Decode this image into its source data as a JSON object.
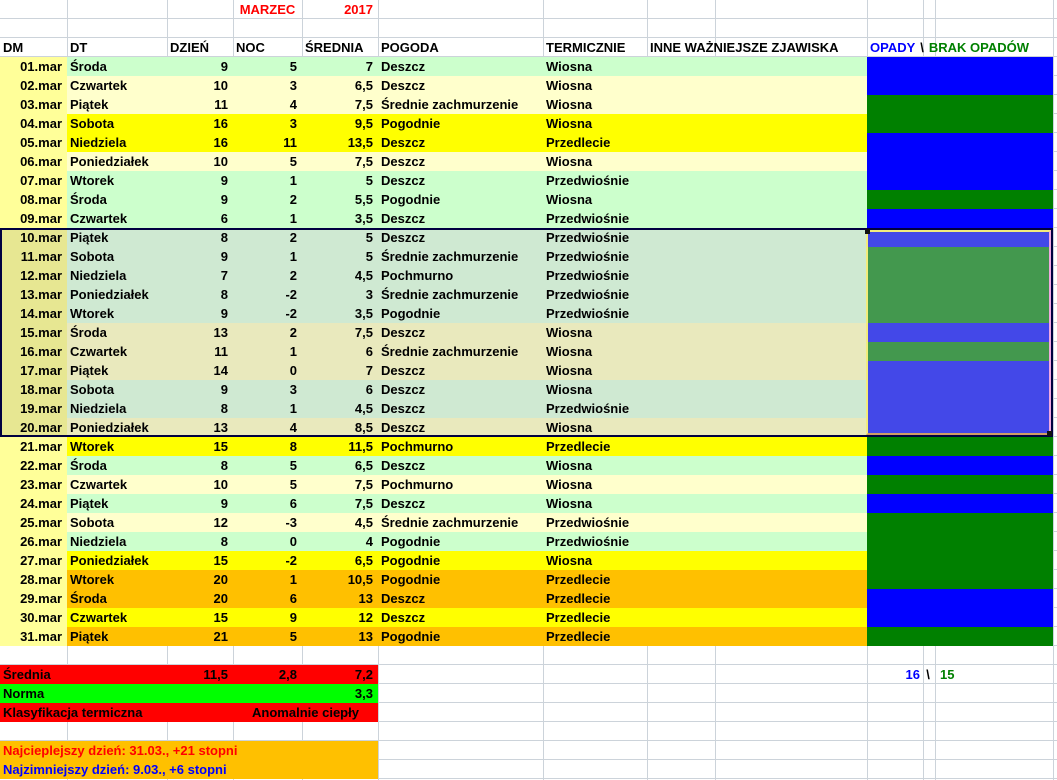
{
  "title": {
    "month": "MARZEC",
    "year": "2017"
  },
  "header": {
    "dm": "DM",
    "dt": "DT",
    "dzien": "DZIEŃ",
    "noc": "NOC",
    "srednia": "ŚREDNIA",
    "pogoda": "POGODA",
    "termicznie": "TERMICZNIE",
    "zjawiska": "INNE WAŻNIEJSZE ZJAWISKA",
    "opady": "OPADY",
    "separator": "\\",
    "brak_opadow": "BRAK OPADÓW"
  },
  "rows": [
    {
      "dm": "01.mar",
      "dt": "Środa",
      "dzien": "9",
      "noc": "5",
      "srednia": "7",
      "pogoda": "Deszcz",
      "termicznie": "Wiosna",
      "zjawiska": "",
      "row_color": "mint",
      "precip": "opady",
      "selected": false
    },
    {
      "dm": "02.mar",
      "dt": "Czwartek",
      "dzien": "10",
      "noc": "3",
      "srednia": "6,5",
      "pogoda": "Deszcz",
      "termicznie": "Wiosna",
      "zjawiska": "",
      "row_color": "cream",
      "precip": "opady",
      "selected": false
    },
    {
      "dm": "03.mar",
      "dt": "Piątek",
      "dzien": "11",
      "noc": "4",
      "srednia": "7,5",
      "pogoda": "Średnie zachmurzenie",
      "termicznie": "Wiosna",
      "zjawiska": "",
      "row_color": "cream",
      "precip": "brak",
      "selected": false
    },
    {
      "dm": "04.mar",
      "dt": "Sobota",
      "dzien": "16",
      "noc": "3",
      "srednia": "9,5",
      "pogoda": "Pogodnie",
      "termicznie": "Wiosna",
      "zjawiska": "",
      "row_color": "yellow",
      "precip": "brak",
      "selected": false
    },
    {
      "dm": "05.mar",
      "dt": "Niedziela",
      "dzien": "16",
      "noc": "11",
      "srednia": "13,5",
      "pogoda": "Deszcz",
      "termicznie": "Przedlecie",
      "zjawiska": "",
      "row_color": "yellow",
      "precip": "opady",
      "selected": false
    },
    {
      "dm": "06.mar",
      "dt": "Poniedziałek",
      "dzien": "10",
      "noc": "5",
      "srednia": "7,5",
      "pogoda": "Deszcz",
      "termicznie": "Wiosna",
      "zjawiska": "",
      "row_color": "cream",
      "precip": "opady",
      "selected": false
    },
    {
      "dm": "07.mar",
      "dt": "Wtorek",
      "dzien": "9",
      "noc": "1",
      "srednia": "5",
      "pogoda": "Deszcz",
      "termicznie": "Przedwiośnie",
      "zjawiska": "",
      "row_color": "mint",
      "precip": "opady",
      "selected": false
    },
    {
      "dm": "08.mar",
      "dt": "Środa",
      "dzien": "9",
      "noc": "2",
      "srednia": "5,5",
      "pogoda": "Pogodnie",
      "termicznie": "Wiosna",
      "zjawiska": "",
      "row_color": "mint",
      "precip": "brak",
      "selected": false
    },
    {
      "dm": "09.mar",
      "dt": "Czwartek",
      "dzien": "6",
      "noc": "1",
      "srednia": "3,5",
      "pogoda": "Deszcz",
      "termicznie": "Przedwiośnie",
      "zjawiska": "",
      "row_color": "mint",
      "precip": "opady",
      "selected": false
    },
    {
      "dm": "10.mar",
      "dt": "Piątek",
      "dzien": "8",
      "noc": "2",
      "srednia": "5",
      "pogoda": "Deszcz",
      "termicznie": "Przedwiośnie",
      "zjawiska": "",
      "row_color": "mint",
      "precip": "opady",
      "selected": true
    },
    {
      "dm": "11.mar",
      "dt": "Sobota",
      "dzien": "9",
      "noc": "1",
      "srednia": "5",
      "pogoda": "Średnie zachmurzenie",
      "termicznie": "Przedwiośnie",
      "zjawiska": "",
      "row_color": "mint",
      "precip": "brak",
      "selected": true
    },
    {
      "dm": "12.mar",
      "dt": "Niedziela",
      "dzien": "7",
      "noc": "2",
      "srednia": "4,5",
      "pogoda": "Pochmurno",
      "termicznie": "Przedwiośnie",
      "zjawiska": "",
      "row_color": "mint",
      "precip": "brak",
      "selected": true
    },
    {
      "dm": "13.mar",
      "dt": "Poniedziałek",
      "dzien": "8",
      "noc": "-2",
      "srednia": "3",
      "pogoda": "Średnie zachmurzenie",
      "termicznie": "Przedwiośnie",
      "zjawiska": "",
      "row_color": "mint",
      "precip": "brak",
      "selected": true
    },
    {
      "dm": "14.mar",
      "dt": "Wtorek",
      "dzien": "9",
      "noc": "-2",
      "srednia": "3,5",
      "pogoda": "Pogodnie",
      "termicznie": "Przedwiośnie",
      "zjawiska": "",
      "row_color": "mint",
      "precip": "brak",
      "selected": true
    },
    {
      "dm": "15.mar",
      "dt": "Środa",
      "dzien": "13",
      "noc": "2",
      "srednia": "7,5",
      "pogoda": "Deszcz",
      "termicznie": "Wiosna",
      "zjawiska": "",
      "row_color": "cream",
      "precip": "opady",
      "selected": true
    },
    {
      "dm": "16.mar",
      "dt": "Czwartek",
      "dzien": "11",
      "noc": "1",
      "srednia": "6",
      "pogoda": "Średnie zachmurzenie",
      "termicznie": "Wiosna",
      "zjawiska": "",
      "row_color": "cream",
      "precip": "brak",
      "selected": true
    },
    {
      "dm": "17.mar",
      "dt": "Piątek",
      "dzien": "14",
      "noc": "0",
      "srednia": "7",
      "pogoda": "Deszcz",
      "termicznie": "Wiosna",
      "zjawiska": "",
      "row_color": "cream",
      "precip": "opady",
      "selected": true
    },
    {
      "dm": "18.mar",
      "dt": "Sobota",
      "dzien": "9",
      "noc": "3",
      "srednia": "6",
      "pogoda": "Deszcz",
      "termicznie": "Wiosna",
      "zjawiska": "",
      "row_color": "mint",
      "precip": "opady",
      "selected": true
    },
    {
      "dm": "19.mar",
      "dt": "Niedziela",
      "dzien": "8",
      "noc": "1",
      "srednia": "4,5",
      "pogoda": "Deszcz",
      "termicznie": "Przedwiośnie",
      "zjawiska": "",
      "row_color": "mint",
      "precip": "opady",
      "selected": true
    },
    {
      "dm": "20.mar",
      "dt": "Poniedziałek",
      "dzien": "13",
      "noc": "4",
      "srednia": "8,5",
      "pogoda": "Deszcz",
      "termicznie": "Wiosna",
      "zjawiska": "",
      "row_color": "cream",
      "precip": "opady",
      "selected": true
    },
    {
      "dm": "21.mar",
      "dt": "Wtorek",
      "dzien": "15",
      "noc": "8",
      "srednia": "11,5",
      "pogoda": "Pochmurno",
      "termicznie": "Przedlecie",
      "zjawiska": "",
      "row_color": "yellow",
      "precip": "brak",
      "selected": false
    },
    {
      "dm": "22.mar",
      "dt": "Środa",
      "dzien": "8",
      "noc": "5",
      "srednia": "6,5",
      "pogoda": "Deszcz",
      "termicznie": "Wiosna",
      "zjawiska": "",
      "row_color": "mint",
      "precip": "opady",
      "selected": false
    },
    {
      "dm": "23.mar",
      "dt": "Czwartek",
      "dzien": "10",
      "noc": "5",
      "srednia": "7,5",
      "pogoda": "Pochmurno",
      "termicznie": "Wiosna",
      "zjawiska": "",
      "row_color": "cream",
      "precip": "brak",
      "selected": false
    },
    {
      "dm": "24.mar",
      "dt": "Piątek",
      "dzien": "9",
      "noc": "6",
      "srednia": "7,5",
      "pogoda": "Deszcz",
      "termicznie": "Wiosna",
      "zjawiska": "",
      "row_color": "mint",
      "precip": "opady",
      "selected": false
    },
    {
      "dm": "25.mar",
      "dt": "Sobota",
      "dzien": "12",
      "noc": "-3",
      "srednia": "4,5",
      "pogoda": "Średnie zachmurzenie",
      "termicznie": "Przedwiośnie",
      "zjawiska": "",
      "row_color": "cream",
      "precip": "brak",
      "selected": false
    },
    {
      "dm": "26.mar",
      "dt": "Niedziela",
      "dzien": "8",
      "noc": "0",
      "srednia": "4",
      "pogoda": "Pogodnie",
      "termicznie": "Przedwiośnie",
      "zjawiska": "",
      "row_color": "mint",
      "precip": "brak",
      "selected": false
    },
    {
      "dm": "27.mar",
      "dt": "Poniedziałek",
      "dzien": "15",
      "noc": "-2",
      "srednia": "6,5",
      "pogoda": "Pogodnie",
      "termicznie": "Wiosna",
      "zjawiska": "",
      "row_color": "yellow",
      "precip": "brak",
      "selected": false
    },
    {
      "dm": "28.mar",
      "dt": "Wtorek",
      "dzien": "20",
      "noc": "1",
      "srednia": "10,5",
      "pogoda": "Pogodnie",
      "termicznie": "Przedlecie",
      "zjawiska": "",
      "row_color": "orange",
      "precip": "brak",
      "selected": false
    },
    {
      "dm": "29.mar",
      "dt": "Środa",
      "dzien": "20",
      "noc": "6",
      "srednia": "13",
      "pogoda": "Deszcz",
      "termicznie": "Przedlecie",
      "zjawiska": "",
      "row_color": "orange",
      "precip": "opady",
      "selected": false
    },
    {
      "dm": "30.mar",
      "dt": "Czwartek",
      "dzien": "15",
      "noc": "9",
      "srednia": "12",
      "pogoda": "Deszcz",
      "termicznie": "Przedlecie",
      "zjawiska": "",
      "row_color": "yellow",
      "precip": "opady",
      "selected": false
    },
    {
      "dm": "31.mar",
      "dt": "Piątek",
      "dzien": "21",
      "noc": "5",
      "srednia": "13",
      "pogoda": "Pogodnie",
      "termicznie": "Przedlecie",
      "zjawiska": "",
      "row_color": "orange",
      "precip": "brak",
      "selected": false
    }
  ],
  "summary": {
    "srednia": {
      "label": "Średnia",
      "dzien": "11,5",
      "noc": "2,8",
      "srednia": "7,2"
    },
    "norma": {
      "label": "Norma",
      "srednia": "3,3"
    },
    "klasyfikacja": {
      "label": "Klasyfikacja termiczna",
      "value": "Anomalnie ciepły"
    },
    "precip_counts": {
      "opady": "16",
      "separator": "\\",
      "brak": "15"
    },
    "warmest": "Najcieplejszy dzień: 31.03., +21 stopni",
    "coldest": "Najzimniejszy dzień: 9.03., +6 stopni"
  },
  "colors": {
    "dm_column": "#ffff99",
    "dm_column_selected": "#e7e792",
    "row": {
      "mint": "#ccffcc",
      "cream": "#ffffcc",
      "yellow": "#ffff00",
      "orange": "#ffc000"
    },
    "row_selected": {
      "mint": "#cfe9d2",
      "cream": "#e9e9bd",
      "yellow": "#e9e900",
      "orange": "#e9b000"
    },
    "precip": {
      "opady": "#0000ff",
      "brak": "#008000"
    },
    "precip_selected": {
      "opady": "#4348e8",
      "brak": "#43984e"
    },
    "summary_red": "#ff0000",
    "summary_green": "#00ff00",
    "summary_orange": "#ffc000",
    "title_red": "#ff0000",
    "opady_text": "#0000ff",
    "brak_text": "#008000"
  }
}
